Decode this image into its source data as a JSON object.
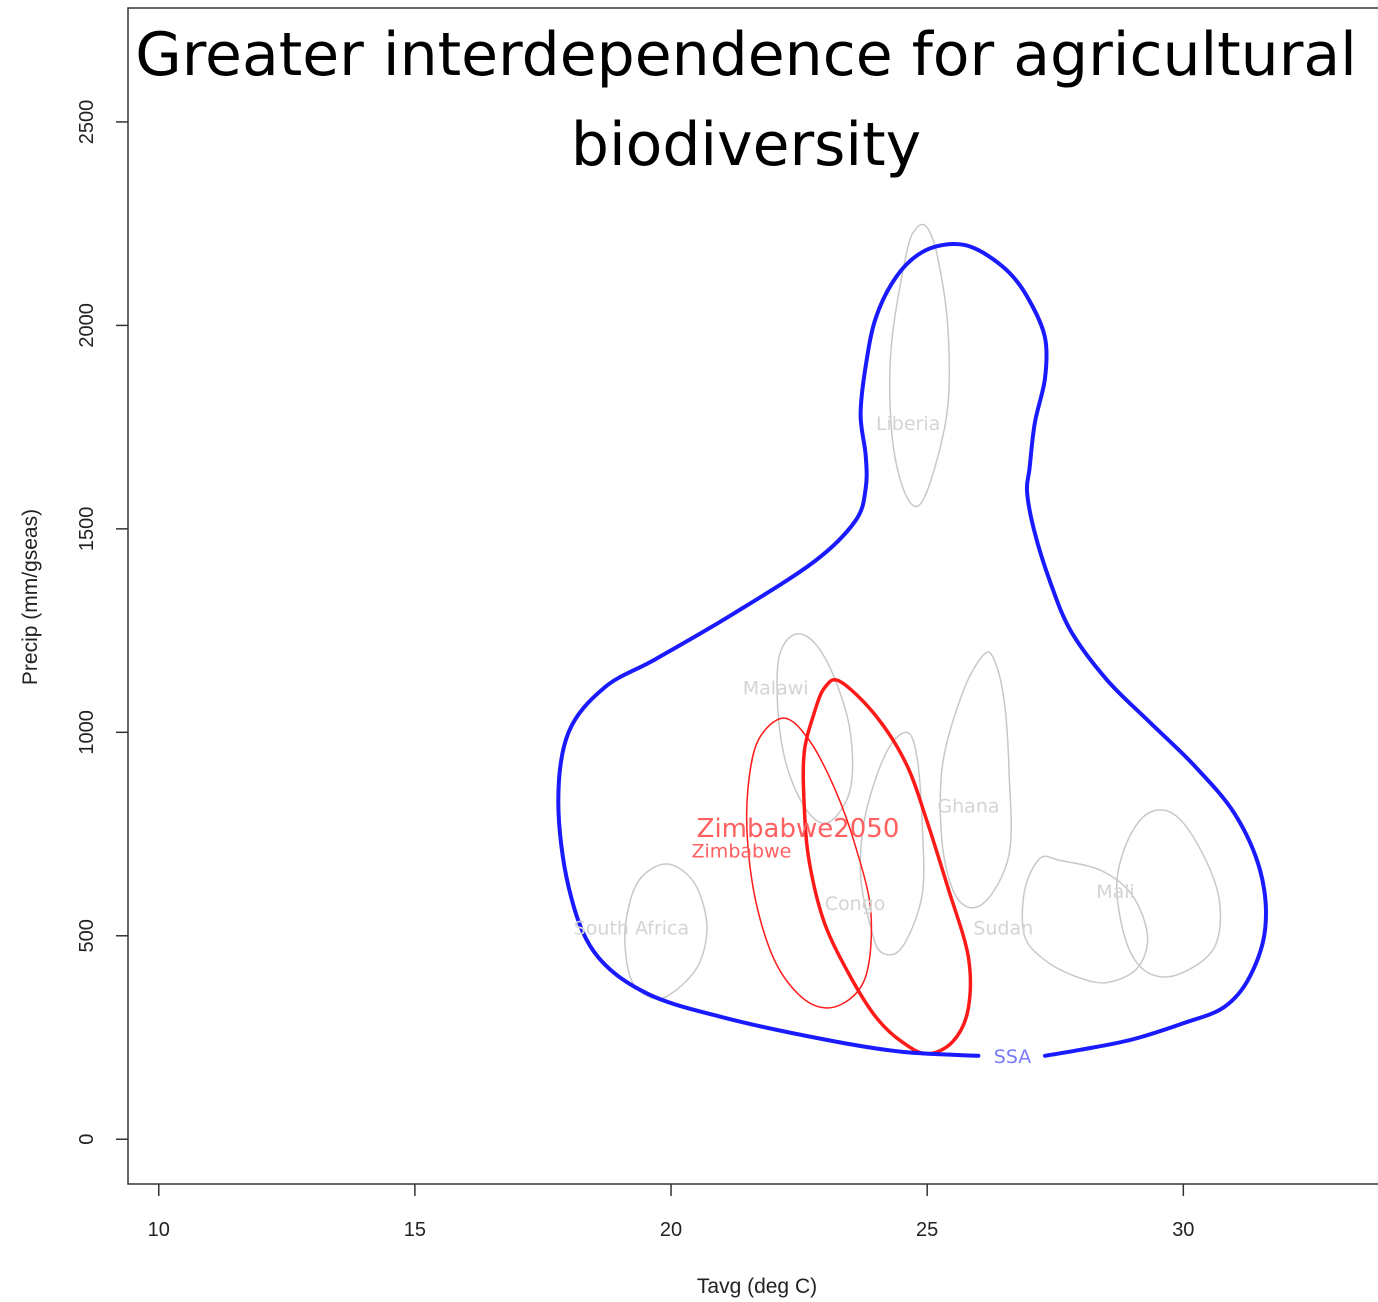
{
  "chart_data": {
    "type": "contour",
    "title_lines": [
      "Greater interdependence for agricultural",
      "biodiversity"
    ],
    "xlabel": "Tavg (deg C)",
    "ylabel": "Precip (mm/gseas)",
    "xlim": [
      9.4,
      33.8
    ],
    "ylim": [
      -110,
      2780
    ],
    "x_ticks": [
      10,
      15,
      20,
      25,
      30
    ],
    "y_ticks": [
      0,
      500,
      1000,
      1500,
      2000,
      2500
    ],
    "x_tick_labels": [
      "10",
      "15",
      "20",
      "25",
      "30"
    ],
    "y_tick_labels": [
      "0",
      "500",
      "1000",
      "1500",
      "2000",
      "2500"
    ],
    "grid": false,
    "colors": {
      "ssa": "#1a1aff",
      "ssa_label": "#7a7aff",
      "zimbabwe": "#ff1a1a",
      "zimbabwe_label": "#ff6060",
      "country": "#c8c8c8",
      "country_label": "#d4d4d4"
    },
    "series": [
      {
        "name": "SSA",
        "label_at": [
          26.3,
          205
        ],
        "color": "#1a1aff",
        "width": 4,
        "points": [
          [
            26.0,
            205
          ],
          [
            24.5,
            215
          ],
          [
            23.0,
            245
          ],
          [
            21.0,
            300
          ],
          [
            19.5,
            360
          ],
          [
            18.5,
            460
          ],
          [
            18.0,
            620
          ],
          [
            17.8,
            830
          ],
          [
            18.0,
            1000
          ],
          [
            18.7,
            1110
          ],
          [
            19.7,
            1180
          ],
          [
            21.2,
            1290
          ],
          [
            22.8,
            1420
          ],
          [
            23.6,
            1520
          ],
          [
            23.8,
            1600
          ],
          [
            23.8,
            1680
          ],
          [
            23.7,
            1780
          ],
          [
            23.8,
            1900
          ],
          [
            24.0,
            2020
          ],
          [
            24.4,
            2120
          ],
          [
            24.9,
            2180
          ],
          [
            25.5,
            2200
          ],
          [
            26.0,
            2185
          ],
          [
            26.6,
            2130
          ],
          [
            27.0,
            2060
          ],
          [
            27.3,
            1970
          ],
          [
            27.3,
            1870
          ],
          [
            27.1,
            1760
          ],
          [
            27.0,
            1650
          ],
          [
            26.95,
            1590
          ],
          [
            27.1,
            1490
          ],
          [
            27.4,
            1370
          ],
          [
            27.8,
            1250
          ],
          [
            28.5,
            1130
          ],
          [
            29.3,
            1030
          ],
          [
            30.2,
            920
          ],
          [
            31.0,
            800
          ],
          [
            31.5,
            660
          ],
          [
            31.6,
            520
          ],
          [
            31.3,
            400
          ],
          [
            30.8,
            325
          ],
          [
            30.0,
            285
          ],
          [
            29.0,
            245
          ],
          [
            28.0,
            220
          ],
          [
            27.3,
            205
          ]
        ]
      },
      {
        "name": "Zimbabwe2050",
        "label_at": [
          20.5,
          760
        ],
        "color": "#ff1a1a",
        "width": 3.5,
        "closed": true,
        "points": [
          [
            23.3,
            1125
          ],
          [
            23.0,
            1110
          ],
          [
            22.8,
            1050
          ],
          [
            22.6,
            950
          ],
          [
            22.6,
            820
          ],
          [
            22.7,
            680
          ],
          [
            23.0,
            530
          ],
          [
            23.5,
            400
          ],
          [
            24.0,
            300
          ],
          [
            24.5,
            240
          ],
          [
            25.0,
            210
          ],
          [
            25.5,
            240
          ],
          [
            25.8,
            320
          ],
          [
            25.8,
            450
          ],
          [
            25.4,
            620
          ],
          [
            25.0,
            780
          ],
          [
            24.6,
            920
          ],
          [
            24.0,
            1040
          ]
        ]
      },
      {
        "name": "Zimbabwe",
        "label_at": [
          20.4,
          710
        ],
        "color": "#ff1a1a",
        "width": 1.5,
        "closed": true,
        "points": [
          [
            22.2,
            1035
          ],
          [
            21.7,
            980
          ],
          [
            21.5,
            860
          ],
          [
            21.5,
            720
          ],
          [
            21.7,
            560
          ],
          [
            22.1,
            420
          ],
          [
            22.7,
            335
          ],
          [
            23.3,
            330
          ],
          [
            23.8,
            400
          ],
          [
            23.9,
            560
          ],
          [
            23.6,
            720
          ],
          [
            23.2,
            860
          ],
          [
            22.7,
            980
          ]
        ]
      },
      {
        "name": "Liberia",
        "label_at": [
          24.0,
          1760
        ],
        "color": "#c8c8c8",
        "width": 1.5,
        "closed": true,
        "points": [
          [
            24.8,
            2240
          ],
          [
            24.6,
            2180
          ],
          [
            24.3,
            1950
          ],
          [
            24.3,
            1750
          ],
          [
            24.5,
            1610
          ],
          [
            24.8,
            1555
          ],
          [
            25.1,
            1630
          ],
          [
            25.4,
            1800
          ],
          [
            25.4,
            2000
          ],
          [
            25.2,
            2170
          ],
          [
            25.0,
            2240
          ]
        ]
      },
      {
        "name": "Malawi",
        "label_at": [
          21.4,
          1110
        ],
        "color": "#c8c8c8",
        "width": 1.5,
        "closed": true,
        "points": [
          [
            22.4,
            1240
          ],
          [
            22.1,
            1180
          ],
          [
            22.1,
            1030
          ],
          [
            22.3,
            900
          ],
          [
            22.7,
            800
          ],
          [
            23.1,
            780
          ],
          [
            23.5,
            860
          ],
          [
            23.5,
            1000
          ],
          [
            23.2,
            1130
          ],
          [
            22.8,
            1220
          ]
        ]
      },
      {
        "name": "Ghana",
        "label_at": [
          25.2,
          820
        ],
        "color": "#c8c8c8",
        "width": 1.5,
        "closed": true,
        "points": [
          [
            26.1,
            1190
          ],
          [
            25.7,
            1100
          ],
          [
            25.3,
            920
          ],
          [
            25.3,
            720
          ],
          [
            25.6,
            590
          ],
          [
            26.1,
            580
          ],
          [
            26.6,
            700
          ],
          [
            26.6,
            900
          ],
          [
            26.5,
            1080
          ],
          [
            26.3,
            1180
          ]
        ]
      },
      {
        "name": "Congo",
        "label_at": [
          23.0,
          580
        ],
        "color": "#c8c8c8",
        "width": 1.5,
        "closed": true,
        "points": [
          [
            24.6,
            1000
          ],
          [
            24.2,
            950
          ],
          [
            23.8,
            800
          ],
          [
            23.7,
            650
          ],
          [
            23.9,
            520
          ],
          [
            24.1,
            460
          ],
          [
            24.5,
            470
          ],
          [
            24.9,
            600
          ],
          [
            24.9,
            780
          ],
          [
            24.8,
            940
          ]
        ]
      },
      {
        "name": "South Africa",
        "label_at": [
          18.1,
          520
        ],
        "color": "#c8c8c8",
        "width": 1.5,
        "closed": true,
        "points": [
          [
            19.7,
            670
          ],
          [
            19.3,
            620
          ],
          [
            19.1,
            510
          ],
          [
            19.2,
            400
          ],
          [
            19.5,
            355
          ],
          [
            19.9,
            350
          ],
          [
            20.5,
            420
          ],
          [
            20.7,
            520
          ],
          [
            20.5,
            620
          ],
          [
            20.1,
            670
          ]
        ]
      },
      {
        "name": "Sudan",
        "label_at": [
          25.9,
          520
        ],
        "color": "#c8c8c8",
        "width": 1.5,
        "closed": true,
        "points": [
          [
            27.2,
            690
          ],
          [
            26.9,
            610
          ],
          [
            26.9,
            500
          ],
          [
            27.3,
            440
          ],
          [
            27.9,
            400
          ],
          [
            28.5,
            385
          ],
          [
            29.1,
            420
          ],
          [
            29.3,
            500
          ],
          [
            29.0,
            600
          ],
          [
            28.4,
            660
          ],
          [
            27.6,
            685
          ]
        ]
      },
      {
        "name": "Mali",
        "label_at": [
          28.3,
          610
        ],
        "color": "#c8c8c8",
        "width": 1.5,
        "closed": true,
        "points": [
          [
            29.3,
            800
          ],
          [
            28.9,
            730
          ],
          [
            28.7,
            620
          ],
          [
            28.9,
            480
          ],
          [
            29.3,
            410
          ],
          [
            29.9,
            405
          ],
          [
            30.6,
            470
          ],
          [
            30.7,
            590
          ],
          [
            30.3,
            720
          ],
          [
            29.8,
            800
          ]
        ]
      }
    ]
  }
}
